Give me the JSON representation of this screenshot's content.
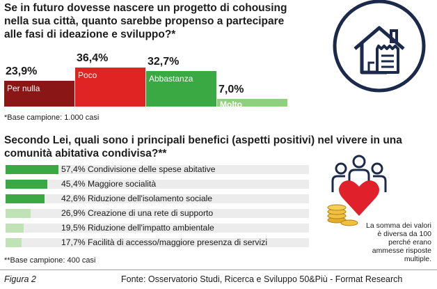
{
  "question1": "Se in futuro dovesse nascere un progetto di cohousing nella sua città, quanto sarebbe propenso a partecipare alle fasi di ideazione e sviluppo?*",
  "question2": "Secondo Lei, quali sono i principali benefici (aspetti positivi) nel vivere in una comunità abitativa condivisa?**",
  "base1": "*Base campione: 1.000 casi",
  "base2": "**Base campione: 400 casi",
  "note": "La somma dei valori è diversa da 100 perché erano ammesse risposte multiple.",
  "footer": {
    "figure": "Figura 2",
    "source": "Fonte: Osservatorio Studi, Ricerca e Sviluppo 50&Più - Format Research"
  },
  "icons": [
    "house-receipt-icon",
    "people-heart-coins-icon"
  ],
  "chart_data": [
    {
      "type": "bar",
      "categories": [
        "Per nulla",
        "Poco",
        "Abbastanza",
        "Molto"
      ],
      "values": [
        23.9,
        36.4,
        32.7,
        7.0
      ],
      "value_labels": [
        "23,9%",
        "36,4%",
        "32,7%",
        "7,0%"
      ],
      "colors": [
        "#8b1616",
        "#e02424",
        "#3aa843",
        "#8fd07e"
      ]
    },
    {
      "type": "bar",
      "orientation": "horizontal",
      "categories": [
        "Condivisione delle spese abitative",
        "Maggiore socialità",
        "Riduzione dell'isolamento sociale",
        "Creazione di una rete di supporto",
        "Riduzione dell'impatto ambientale",
        "Facilità di accesso/maggiore presenza di servizi"
      ],
      "values": [
        57.4,
        45.4,
        42.6,
        26.9,
        19.5,
        17.7
      ],
      "value_labels": [
        "57,4%",
        "45,4%",
        "42,6%",
        "26,9%",
        "19,5%",
        "17,7%"
      ],
      "colors": [
        "#3aa843",
        "#3aa843",
        "#3aa843",
        "#bfe3b4",
        "#bfe3b4",
        "#bfe3b4"
      ]
    }
  ]
}
